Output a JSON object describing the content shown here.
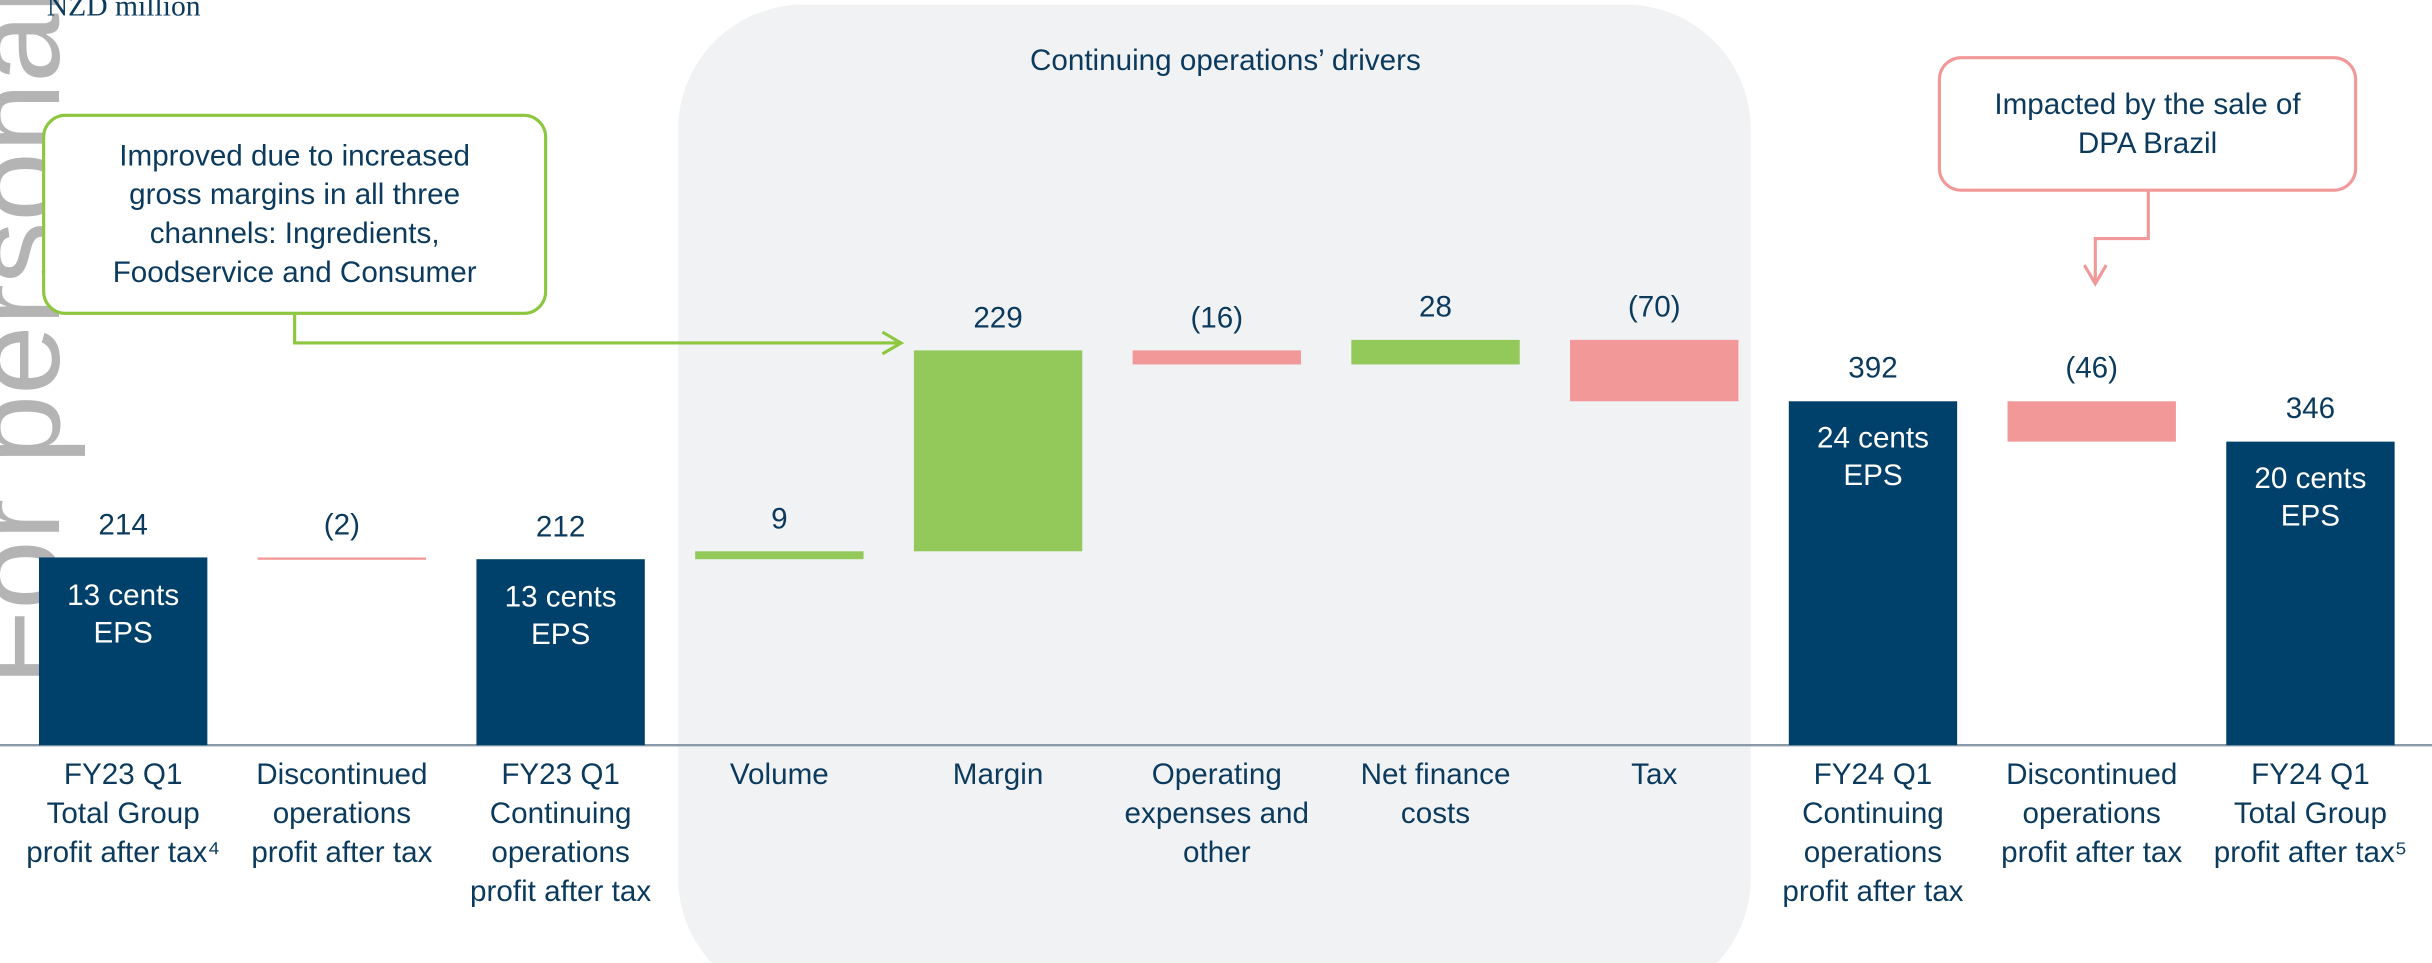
{
  "chart_data": {
    "type": "waterfall",
    "unit_label": "NZD million",
    "watermark": "For personal use only",
    "panel_title": "Continuing operations’ drivers",
    "annotations": [
      "Improved due to increased\ngross margins in all three\nchannels: Ingredients,\nFoodservice and Consumer",
      "Impacted by the sale of\nDPA Brazil"
    ],
    "categories": [
      "FY23 Q1\nTotal Group\nprofit after tax⁴",
      "Discontinued\noperations\nprofit after tax",
      "FY23 Q1\nContinuing\noperations\nprofit after tax",
      "Volume",
      "Margin",
      "Operating\nexpenses and\nother",
      "Net finance\ncosts",
      "Tax",
      "FY24 Q1\nContinuing\noperations\nprofit after tax",
      "Discontinued\noperations\nprofit after tax",
      "FY24 Q1\nTotal Group\nprofit after tax⁵"
    ],
    "values": [
      214,
      -2,
      212,
      9,
      229,
      -16,
      28,
      -70,
      392,
      -46,
      346
    ],
    "value_labels": [
      "214",
      "(2)",
      "212",
      "9",
      "229",
      "(16)",
      "28",
      "(70)",
      "392",
      "(46)",
      "346"
    ],
    "is_total": [
      true,
      false,
      true,
      false,
      false,
      false,
      false,
      false,
      true,
      false,
      true
    ],
    "inner_labels": [
      "13 cents\nEPS",
      null,
      "13 cents\nEPS",
      null,
      null,
      null,
      null,
      null,
      "24 cents\nEPS",
      null,
      "20 cents\nEPS"
    ],
    "colors": {
      "total": "#00416b",
      "increase": "#92c95a",
      "decrease": "#f29898"
    }
  }
}
